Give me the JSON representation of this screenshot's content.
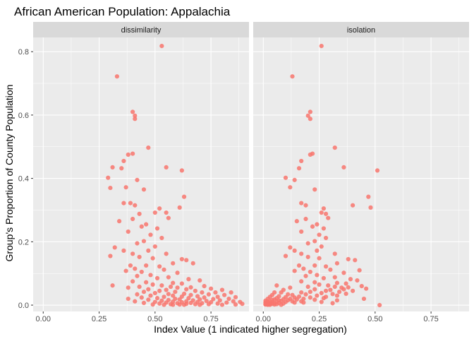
{
  "chart_data": {
    "type": "scatter",
    "title": "African American Population: Appalachia",
    "xlabel": "Index Value (1 indicated higher segregation)",
    "ylabel": "Group's Proportion of County Population",
    "xlim": [
      -0.045,
      0.92
    ],
    "ylim": [
      -0.02,
      0.845
    ],
    "x_ticks": [
      0.0,
      0.25,
      0.5,
      0.75
    ],
    "x_tick_labels": [
      "0.00",
      "0.25",
      "0.50",
      "0.75"
    ],
    "y_ticks": [
      0.0,
      0.2,
      0.4,
      0.6,
      0.8
    ],
    "y_tick_labels": [
      "0.0",
      "0.2",
      "0.4",
      "0.6",
      "0.8"
    ],
    "grid": true,
    "point_color": "#F8766D",
    "background_color": "#EBEBEB",
    "strip_color": "#D9D9D9",
    "facets": [
      {
        "label": "dissimilarity",
        "points": [
          [
            0.53,
            0.818
          ],
          [
            0.33,
            0.722
          ],
          [
            0.4,
            0.61
          ],
          [
            0.41,
            0.598
          ],
          [
            0.41,
            0.588
          ],
          [
            0.47,
            0.497
          ],
          [
            0.38,
            0.475
          ],
          [
            0.4,
            0.478
          ],
          [
            0.36,
            0.455
          ],
          [
            0.31,
            0.435
          ],
          [
            0.35,
            0.432
          ],
          [
            0.55,
            0.435
          ],
          [
            0.62,
            0.425
          ],
          [
            0.29,
            0.402
          ],
          [
            0.42,
            0.395
          ],
          [
            0.37,
            0.372
          ],
          [
            0.3,
            0.37
          ],
          [
            0.45,
            0.365
          ],
          [
            0.63,
            0.342
          ],
          [
            0.36,
            0.322
          ],
          [
            0.39,
            0.322
          ],
          [
            0.41,
            0.315
          ],
          [
            0.52,
            0.305
          ],
          [
            0.61,
            0.308
          ],
          [
            0.5,
            0.292
          ],
          [
            0.55,
            0.292
          ],
          [
            0.43,
            0.288
          ],
          [
            0.4,
            0.272
          ],
          [
            0.34,
            0.265
          ],
          [
            0.56,
            0.275
          ],
          [
            0.46,
            0.255
          ],
          [
            0.44,
            0.248
          ],
          [
            0.51,
            0.242
          ],
          [
            0.38,
            0.232
          ],
          [
            0.48,
            0.222
          ],
          [
            0.53,
            0.212
          ],
          [
            0.45,
            0.202
          ],
          [
            0.42,
            0.195
          ],
          [
            0.5,
            0.185
          ],
          [
            0.32,
            0.182
          ],
          [
            0.36,
            0.172
          ],
          [
            0.47,
            0.172
          ],
          [
            0.4,
            0.162
          ],
          [
            0.55,
            0.162
          ],
          [
            0.3,
            0.155
          ],
          [
            0.43,
            0.152
          ],
          [
            0.49,
            0.148
          ],
          [
            0.62,
            0.145
          ],
          [
            0.64,
            0.142
          ],
          [
            0.58,
            0.132
          ],
          [
            0.67,
            0.132
          ],
          [
            0.39,
            0.125
          ],
          [
            0.46,
            0.125
          ],
          [
            0.52,
            0.122
          ],
          [
            0.41,
            0.115
          ],
          [
            0.54,
            0.112
          ],
          [
            0.37,
            0.108
          ],
          [
            0.44,
            0.105
          ],
          [
            0.6,
            0.102
          ],
          [
            0.48,
            0.095
          ],
          [
            0.42,
            0.092
          ],
          [
            0.56,
            0.088
          ],
          [
            0.51,
            0.085
          ],
          [
            0.65,
            0.082
          ],
          [
            0.7,
            0.078
          ],
          [
            0.4,
            0.075
          ],
          [
            0.46,
            0.072
          ],
          [
            0.58,
            0.07
          ],
          [
            0.62,
            0.068
          ],
          [
            0.49,
            0.065
          ],
          [
            0.53,
            0.062
          ],
          [
            0.31,
            0.062
          ],
          [
            0.72,
            0.06
          ],
          [
            0.57,
            0.058
          ],
          [
            0.43,
            0.058
          ],
          [
            0.66,
            0.056
          ],
          [
            0.6,
            0.055
          ],
          [
            0.38,
            0.055
          ],
          [
            0.75,
            0.052
          ],
          [
            0.47,
            0.05
          ],
          [
            0.64,
            0.05
          ],
          [
            0.55,
            0.048
          ],
          [
            0.8,
            0.048
          ],
          [
            0.52,
            0.045
          ],
          [
            0.68,
            0.045
          ],
          [
            0.45,
            0.042
          ],
          [
            0.59,
            0.042
          ],
          [
            0.71,
            0.04
          ],
          [
            0.77,
            0.04
          ],
          [
            0.84,
            0.04
          ],
          [
            0.5,
            0.038
          ],
          [
            0.63,
            0.036
          ],
          [
            0.56,
            0.035
          ],
          [
            0.42,
            0.034
          ],
          [
            0.74,
            0.034
          ],
          [
            0.66,
            0.032
          ],
          [
            0.81,
            0.032
          ],
          [
            0.48,
            0.03
          ],
          [
            0.58,
            0.03
          ],
          [
            0.69,
            0.028
          ],
          [
            0.62,
            0.027
          ],
          [
            0.54,
            0.026
          ],
          [
            0.78,
            0.026
          ],
          [
            0.86,
            0.025
          ],
          [
            0.44,
            0.024
          ],
          [
            0.72,
            0.024
          ],
          [
            0.65,
            0.022
          ],
          [
            0.51,
            0.022
          ],
          [
            0.59,
            0.02
          ],
          [
            0.83,
            0.02
          ],
          [
            0.38,
            0.02
          ],
          [
            0.76,
            0.019
          ],
          [
            0.7,
            0.018
          ],
          [
            0.61,
            0.018
          ],
          [
            0.47,
            0.017
          ],
          [
            0.56,
            0.016
          ],
          [
            0.67,
            0.015
          ],
          [
            0.79,
            0.015
          ],
          [
            0.88,
            0.01
          ],
          [
            0.53,
            0.014
          ],
          [
            0.73,
            0.013
          ],
          [
            0.64,
            0.012
          ],
          [
            0.85,
            0.012
          ],
          [
            0.41,
            0.012
          ],
          [
            0.58,
            0.011
          ],
          [
            0.69,
            0.01
          ],
          [
            0.5,
            0.01
          ],
          [
            0.62,
            0.009
          ],
          [
            0.75,
            0.009
          ],
          [
            0.82,
            0.008
          ],
          [
            0.55,
            0.008
          ],
          [
            0.66,
            0.007
          ],
          [
            0.45,
            0.007
          ],
          [
            0.6,
            0.006
          ],
          [
            0.71,
            0.006
          ],
          [
            0.78,
            0.005
          ],
          [
            0.89,
            0.004
          ],
          [
            0.52,
            0.005
          ],
          [
            0.64,
            0.004
          ],
          [
            0.57,
            0.003
          ],
          [
            0.68,
            0.003
          ],
          [
            0.74,
            0.003
          ],
          [
            0.61,
            0.002
          ],
          [
            0.49,
            0.002
          ],
          [
            0.86,
            0.002
          ],
          [
            0.54,
            0.001
          ],
          [
            0.7,
            0.001
          ],
          [
            0.63,
            0.001
          ],
          [
            0.8,
            0.001
          ],
          [
            0.58,
            0.001
          ]
        ]
      },
      {
        "label": "isolation",
        "points": [
          [
            0.26,
            0.818
          ],
          [
            0.13,
            0.722
          ],
          [
            0.21,
            0.61
          ],
          [
            0.2,
            0.598
          ],
          [
            0.21,
            0.588
          ],
          [
            0.32,
            0.497
          ],
          [
            0.21,
            0.475
          ],
          [
            0.22,
            0.478
          ],
          [
            0.17,
            0.455
          ],
          [
            0.16,
            0.432
          ],
          [
            0.36,
            0.435
          ],
          [
            0.51,
            0.425
          ],
          [
            0.1,
            0.402
          ],
          [
            0.14,
            0.395
          ],
          [
            0.12,
            0.372
          ],
          [
            0.23,
            0.365
          ],
          [
            0.47,
            0.342
          ],
          [
            0.17,
            0.322
          ],
          [
            0.19,
            0.315
          ],
          [
            0.4,
            0.315
          ],
          [
            0.27,
            0.305
          ],
          [
            0.48,
            0.308
          ],
          [
            0.26,
            0.292
          ],
          [
            0.28,
            0.288
          ],
          [
            0.19,
            0.272
          ],
          [
            0.15,
            0.265
          ],
          [
            0.29,
            0.275
          ],
          [
            0.24,
            0.255
          ],
          [
            0.22,
            0.248
          ],
          [
            0.27,
            0.242
          ],
          [
            0.17,
            0.232
          ],
          [
            0.25,
            0.222
          ],
          [
            0.28,
            0.212
          ],
          [
            0.23,
            0.202
          ],
          [
            0.2,
            0.195
          ],
          [
            0.26,
            0.185
          ],
          [
            0.12,
            0.182
          ],
          [
            0.14,
            0.172
          ],
          [
            0.24,
            0.172
          ],
          [
            0.17,
            0.162
          ],
          [
            0.32,
            0.162
          ],
          [
            0.1,
            0.155
          ],
          [
            0.2,
            0.152
          ],
          [
            0.25,
            0.148
          ],
          [
            0.38,
            0.145
          ],
          [
            0.41,
            0.142
          ],
          [
            0.33,
            0.132
          ],
          [
            0.43,
            0.11
          ],
          [
            0.16,
            0.125
          ],
          [
            0.23,
            0.125
          ],
          [
            0.28,
            0.122
          ],
          [
            0.18,
            0.115
          ],
          [
            0.3,
            0.112
          ],
          [
            0.14,
            0.108
          ],
          [
            0.21,
            0.105
          ],
          [
            0.36,
            0.102
          ],
          [
            0.24,
            0.095
          ],
          [
            0.19,
            0.092
          ],
          [
            0.32,
            0.088
          ],
          [
            0.27,
            0.085
          ],
          [
            0.39,
            0.082
          ],
          [
            0.42,
            0.078
          ],
          [
            0.17,
            0.075
          ],
          [
            0.23,
            0.072
          ],
          [
            0.33,
            0.07
          ],
          [
            0.37,
            0.068
          ],
          [
            0.25,
            0.065
          ],
          [
            0.29,
            0.062
          ],
          [
            0.06,
            0.062
          ],
          [
            0.44,
            0.06
          ],
          [
            0.32,
            0.058
          ],
          [
            0.2,
            0.058
          ],
          [
            0.38,
            0.056
          ],
          [
            0.35,
            0.055
          ],
          [
            0.12,
            0.055
          ],
          [
            0.46,
            0.052
          ],
          [
            0.23,
            0.05
          ],
          [
            0.36,
            0.05
          ],
          [
            0.3,
            0.048
          ],
          [
            0.09,
            0.048
          ],
          [
            0.28,
            0.045
          ],
          [
            0.4,
            0.045
          ],
          [
            0.21,
            0.042
          ],
          [
            0.34,
            0.042
          ],
          [
            0.05,
            0.04
          ],
          [
            0.17,
            0.04
          ],
          [
            0.08,
            0.04
          ],
          [
            0.26,
            0.038
          ],
          [
            0.37,
            0.036
          ],
          [
            0.31,
            0.035
          ],
          [
            0.19,
            0.034
          ],
          [
            0.11,
            0.034
          ],
          [
            0.04,
            0.032
          ],
          [
            0.13,
            0.032
          ],
          [
            0.24,
            0.03
          ],
          [
            0.33,
            0.03
          ],
          [
            0.07,
            0.028
          ],
          [
            0.16,
            0.027
          ],
          [
            0.28,
            0.026
          ],
          [
            0.03,
            0.026
          ],
          [
            0.1,
            0.025
          ],
          [
            0.21,
            0.024
          ],
          [
            0.14,
            0.024
          ],
          [
            0.06,
            0.022
          ],
          [
            0.27,
            0.022
          ],
          [
            0.02,
            0.02
          ],
          [
            0.18,
            0.02
          ],
          [
            0.12,
            0.02
          ],
          [
            0.09,
            0.019
          ],
          [
            0.05,
            0.018
          ],
          [
            0.15,
            0.018
          ],
          [
            0.23,
            0.017
          ],
          [
            0.04,
            0.016
          ],
          [
            0.11,
            0.015
          ],
          [
            0.07,
            0.015
          ],
          [
            0.01,
            0.014
          ],
          [
            0.03,
            0.012
          ],
          [
            0.08,
            0.013
          ],
          [
            0.17,
            0.012
          ],
          [
            0.13,
            0.012
          ],
          [
            0.02,
            0.011
          ],
          [
            0.06,
            0.01
          ],
          [
            0.1,
            0.01
          ],
          [
            0.01,
            0.009
          ],
          [
            0.04,
            0.009
          ],
          [
            0.14,
            0.008
          ],
          [
            0.02,
            0.008
          ],
          [
            0.07,
            0.007
          ],
          [
            0.01,
            0.007
          ],
          [
            0.05,
            0.006
          ],
          [
            0.03,
            0.006
          ],
          [
            0.09,
            0.005
          ],
          [
            0.01,
            0.004
          ],
          [
            0.02,
            0.005
          ],
          [
            0.04,
            0.004
          ],
          [
            0.06,
            0.003
          ],
          [
            0.01,
            0.003
          ],
          [
            0.03,
            0.003
          ],
          [
            0.02,
            0.002
          ],
          [
            0.05,
            0.002
          ],
          [
            0.01,
            0.002
          ],
          [
            0.03,
            0.001
          ],
          [
            0.02,
            0.001
          ],
          [
            0.08,
            0.001
          ],
          [
            0.52,
            0.0
          ],
          [
            0.33,
            0.015
          ],
          [
            0.45,
            0.02
          ],
          [
            0.18,
            0.008
          ],
          [
            0.26,
            0.01
          ],
          [
            0.31,
            0.006
          ]
        ]
      }
    ]
  }
}
